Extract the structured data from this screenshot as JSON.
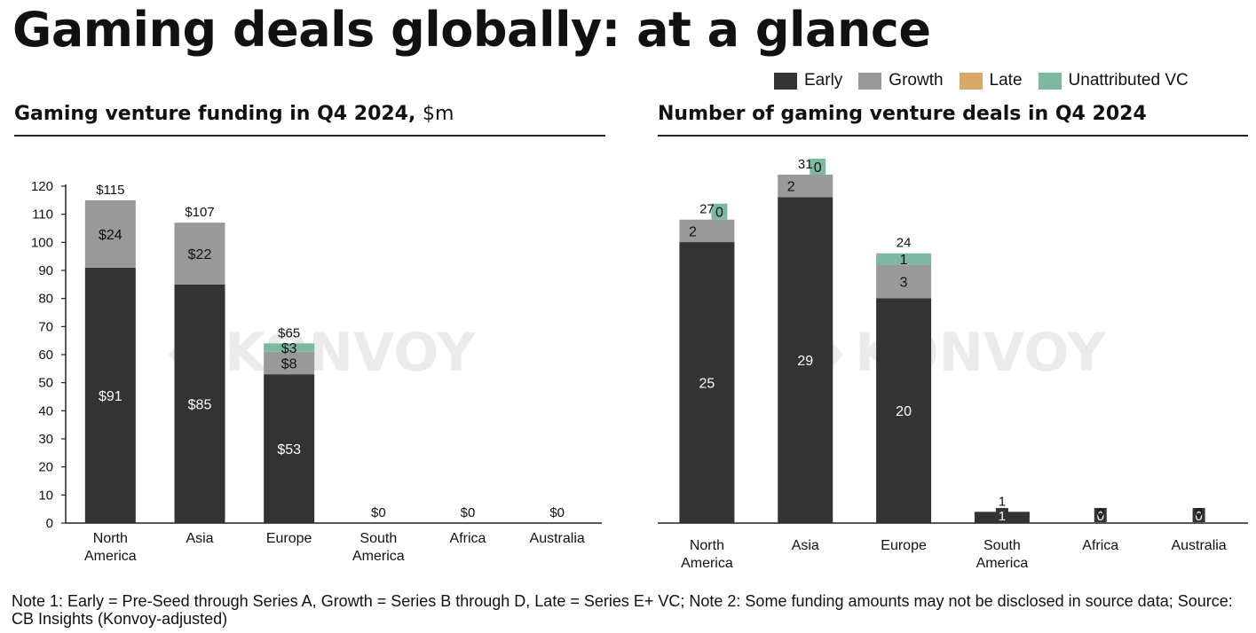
{
  "title": "Gaming deals globally: at a glance",
  "legend": [
    {
      "label": "Early",
      "color": "#333333"
    },
    {
      "label": "Growth",
      "color": "#999999"
    },
    {
      "label": "Late",
      "color": "#D9A866"
    },
    {
      "label": "Unattributed VC",
      "color": "#7DB9A0"
    }
  ],
  "chart_data": [
    {
      "type": "bar",
      "title": "Gaming venture funding in Q4 2024,",
      "unit": "$m",
      "categories": [
        "North America",
        "Asia",
        "Europe",
        "South America",
        "Africa",
        "Australia"
      ],
      "series": [
        {
          "name": "Early",
          "values": [
            91,
            85,
            53,
            0,
            0,
            0
          ],
          "labels": [
            "$91",
            "$85",
            "$53",
            "",
            "",
            ""
          ]
        },
        {
          "name": "Growth",
          "values": [
            24,
            22,
            8,
            0,
            0,
            0
          ],
          "labels": [
            "$24",
            "$22",
            "$8",
            "",
            "",
            ""
          ]
        },
        {
          "name": "Late",
          "values": [
            0,
            0,
            0,
            0,
            0,
            0
          ],
          "labels": [
            "",
            "",
            "",
            "",
            "",
            ""
          ]
        },
        {
          "name": "Unattributed VC",
          "values": [
            0,
            0,
            3,
            0,
            0,
            0
          ],
          "labels": [
            "",
            "",
            "$3",
            "",
            "",
            ""
          ]
        }
      ],
      "totals": [
        "$115",
        "$107",
        "$65",
        "$0",
        "$0",
        "$0"
      ],
      "ylim": [
        0,
        120
      ],
      "yticks": [
        0,
        10,
        20,
        30,
        40,
        50,
        60,
        70,
        80,
        90,
        100,
        110,
        120
      ]
    },
    {
      "type": "bar",
      "title": "Number of gaming venture deals in Q4 2024",
      "categories": [
        "North America",
        "Asia",
        "Europe",
        "South America",
        "Africa",
        "Australia"
      ],
      "series": [
        {
          "name": "Early",
          "values": [
            25,
            29,
            20,
            1,
            0,
            0
          ],
          "labels": [
            "25",
            "29",
            "20",
            "1",
            "0",
            "0"
          ]
        },
        {
          "name": "Growth",
          "values": [
            2,
            2,
            3,
            0,
            0,
            0
          ],
          "labels": [
            "2",
            "2",
            "3",
            "",
            "",
            ""
          ]
        },
        {
          "name": "Late",
          "values": [
            0,
            0,
            0,
            0,
            0,
            0
          ],
          "labels": [
            "",
            "",
            "",
            "",
            "",
            ""
          ]
        },
        {
          "name": "Unattributed VC",
          "values": [
            0,
            0,
            1,
            0,
            0,
            0
          ],
          "labels": [
            "0",
            "0",
            "1",
            "",
            "",
            ""
          ]
        }
      ],
      "totals": [
        "27",
        "31",
        "24",
        "1",
        "0",
        "0"
      ],
      "ylim": [
        0,
        31
      ]
    }
  ],
  "watermark": "KONVOY",
  "note": "Note 1: Early = Pre-Seed through Series A, Growth = Series B through D, Late = Series E+ VC; Note 2: Some funding amounts may not be disclosed in source data; Source: CB Insights (Konvoy-adjusted)"
}
